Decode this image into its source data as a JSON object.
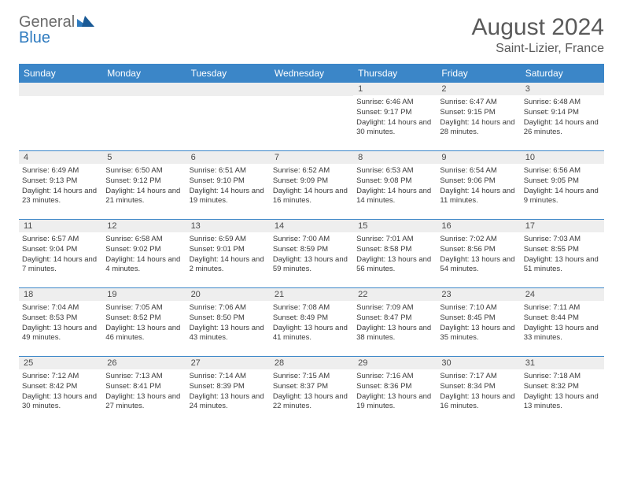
{
  "brand": {
    "general": "General",
    "blue": "Blue"
  },
  "header": {
    "title": "August 2024",
    "location": "Saint-Lizier, France"
  },
  "colors": {
    "header_bar": "#3b86c8",
    "day_band": "#eeeeee",
    "rule": "#3b86c8",
    "text": "#3a3a3a",
    "title_text": "#5a5a5a",
    "logo_gray": "#6b6b6b",
    "logo_blue": "#2f7bbf"
  },
  "dow": [
    "Sunday",
    "Monday",
    "Tuesday",
    "Wednesday",
    "Thursday",
    "Friday",
    "Saturday"
  ],
  "weeks": [
    [
      null,
      null,
      null,
      null,
      {
        "n": "1",
        "sr": "Sunrise: 6:46 AM",
        "ss": "Sunset: 9:17 PM",
        "dl": "Daylight: 14 hours and 30 minutes."
      },
      {
        "n": "2",
        "sr": "Sunrise: 6:47 AM",
        "ss": "Sunset: 9:15 PM",
        "dl": "Daylight: 14 hours and 28 minutes."
      },
      {
        "n": "3",
        "sr": "Sunrise: 6:48 AM",
        "ss": "Sunset: 9:14 PM",
        "dl": "Daylight: 14 hours and 26 minutes."
      }
    ],
    [
      {
        "n": "4",
        "sr": "Sunrise: 6:49 AM",
        "ss": "Sunset: 9:13 PM",
        "dl": "Daylight: 14 hours and 23 minutes."
      },
      {
        "n": "5",
        "sr": "Sunrise: 6:50 AM",
        "ss": "Sunset: 9:12 PM",
        "dl": "Daylight: 14 hours and 21 minutes."
      },
      {
        "n": "6",
        "sr": "Sunrise: 6:51 AM",
        "ss": "Sunset: 9:10 PM",
        "dl": "Daylight: 14 hours and 19 minutes."
      },
      {
        "n": "7",
        "sr": "Sunrise: 6:52 AM",
        "ss": "Sunset: 9:09 PM",
        "dl": "Daylight: 14 hours and 16 minutes."
      },
      {
        "n": "8",
        "sr": "Sunrise: 6:53 AM",
        "ss": "Sunset: 9:08 PM",
        "dl": "Daylight: 14 hours and 14 minutes."
      },
      {
        "n": "9",
        "sr": "Sunrise: 6:54 AM",
        "ss": "Sunset: 9:06 PM",
        "dl": "Daylight: 14 hours and 11 minutes."
      },
      {
        "n": "10",
        "sr": "Sunrise: 6:56 AM",
        "ss": "Sunset: 9:05 PM",
        "dl": "Daylight: 14 hours and 9 minutes."
      }
    ],
    [
      {
        "n": "11",
        "sr": "Sunrise: 6:57 AM",
        "ss": "Sunset: 9:04 PM",
        "dl": "Daylight: 14 hours and 7 minutes."
      },
      {
        "n": "12",
        "sr": "Sunrise: 6:58 AM",
        "ss": "Sunset: 9:02 PM",
        "dl": "Daylight: 14 hours and 4 minutes."
      },
      {
        "n": "13",
        "sr": "Sunrise: 6:59 AM",
        "ss": "Sunset: 9:01 PM",
        "dl": "Daylight: 14 hours and 2 minutes."
      },
      {
        "n": "14",
        "sr": "Sunrise: 7:00 AM",
        "ss": "Sunset: 8:59 PM",
        "dl": "Daylight: 13 hours and 59 minutes."
      },
      {
        "n": "15",
        "sr": "Sunrise: 7:01 AM",
        "ss": "Sunset: 8:58 PM",
        "dl": "Daylight: 13 hours and 56 minutes."
      },
      {
        "n": "16",
        "sr": "Sunrise: 7:02 AM",
        "ss": "Sunset: 8:56 PM",
        "dl": "Daylight: 13 hours and 54 minutes."
      },
      {
        "n": "17",
        "sr": "Sunrise: 7:03 AM",
        "ss": "Sunset: 8:55 PM",
        "dl": "Daylight: 13 hours and 51 minutes."
      }
    ],
    [
      {
        "n": "18",
        "sr": "Sunrise: 7:04 AM",
        "ss": "Sunset: 8:53 PM",
        "dl": "Daylight: 13 hours and 49 minutes."
      },
      {
        "n": "19",
        "sr": "Sunrise: 7:05 AM",
        "ss": "Sunset: 8:52 PM",
        "dl": "Daylight: 13 hours and 46 minutes."
      },
      {
        "n": "20",
        "sr": "Sunrise: 7:06 AM",
        "ss": "Sunset: 8:50 PM",
        "dl": "Daylight: 13 hours and 43 minutes."
      },
      {
        "n": "21",
        "sr": "Sunrise: 7:08 AM",
        "ss": "Sunset: 8:49 PM",
        "dl": "Daylight: 13 hours and 41 minutes."
      },
      {
        "n": "22",
        "sr": "Sunrise: 7:09 AM",
        "ss": "Sunset: 8:47 PM",
        "dl": "Daylight: 13 hours and 38 minutes."
      },
      {
        "n": "23",
        "sr": "Sunrise: 7:10 AM",
        "ss": "Sunset: 8:45 PM",
        "dl": "Daylight: 13 hours and 35 minutes."
      },
      {
        "n": "24",
        "sr": "Sunrise: 7:11 AM",
        "ss": "Sunset: 8:44 PM",
        "dl": "Daylight: 13 hours and 33 minutes."
      }
    ],
    [
      {
        "n": "25",
        "sr": "Sunrise: 7:12 AM",
        "ss": "Sunset: 8:42 PM",
        "dl": "Daylight: 13 hours and 30 minutes."
      },
      {
        "n": "26",
        "sr": "Sunrise: 7:13 AM",
        "ss": "Sunset: 8:41 PM",
        "dl": "Daylight: 13 hours and 27 minutes."
      },
      {
        "n": "27",
        "sr": "Sunrise: 7:14 AM",
        "ss": "Sunset: 8:39 PM",
        "dl": "Daylight: 13 hours and 24 minutes."
      },
      {
        "n": "28",
        "sr": "Sunrise: 7:15 AM",
        "ss": "Sunset: 8:37 PM",
        "dl": "Daylight: 13 hours and 22 minutes."
      },
      {
        "n": "29",
        "sr": "Sunrise: 7:16 AM",
        "ss": "Sunset: 8:36 PM",
        "dl": "Daylight: 13 hours and 19 minutes."
      },
      {
        "n": "30",
        "sr": "Sunrise: 7:17 AM",
        "ss": "Sunset: 8:34 PM",
        "dl": "Daylight: 13 hours and 16 minutes."
      },
      {
        "n": "31",
        "sr": "Sunrise: 7:18 AM",
        "ss": "Sunset: 8:32 PM",
        "dl": "Daylight: 13 hours and 13 minutes."
      }
    ]
  ]
}
